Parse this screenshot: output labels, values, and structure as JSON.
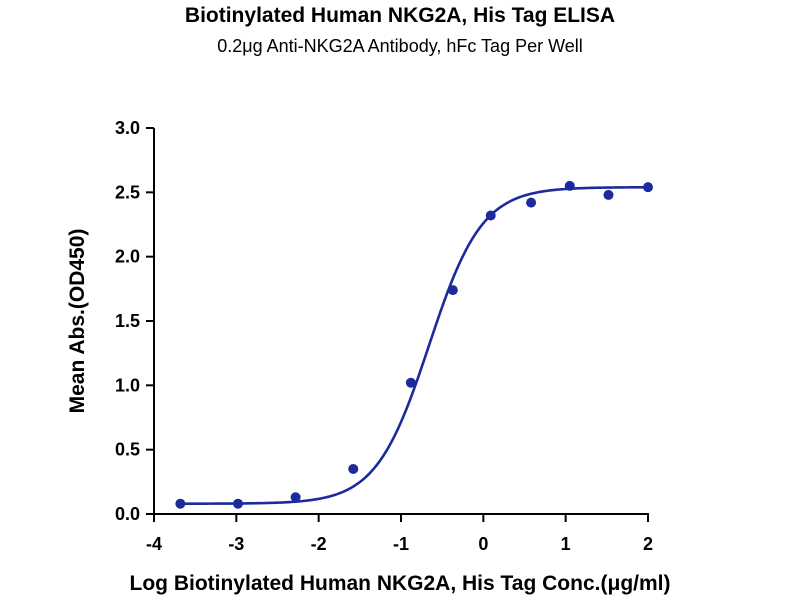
{
  "chart_data": {
    "type": "scatter",
    "title": "Biotinylated Human NKG2A, His Tag ELISA",
    "subtitle": "0.2μg Anti-NKG2A Antibody, hFc Tag Per Well",
    "xlabel": "Log Biotinylated Human NKG2A, His Tag Conc.(μg/ml)",
    "ylabel": "Mean Abs.(OD450)",
    "xlim": [
      -4,
      2
    ],
    "ylim": [
      0,
      3.0
    ],
    "xticks": [
      "-4",
      "-3",
      "-2",
      "-1",
      "0",
      "1",
      "2"
    ],
    "yticks": [
      "0.0",
      "0.5",
      "1.0",
      "1.5",
      "2.0",
      "2.5",
      "3.0"
    ],
    "grid": false,
    "colors": {
      "series": "#1c2a9c"
    },
    "series": [
      {
        "points": [
          {
            "x": -3.68,
            "y": 0.08
          },
          {
            "x": -2.98,
            "y": 0.08
          },
          {
            "x": -2.28,
            "y": 0.13
          },
          {
            "x": -1.58,
            "y": 0.35
          },
          {
            "x": -0.88,
            "y": 1.02
          },
          {
            "x": -0.37,
            "y": 1.74
          },
          {
            "x": 0.09,
            "y": 2.32
          },
          {
            "x": 0.58,
            "y": 2.42
          },
          {
            "x": 1.05,
            "y": 2.55
          },
          {
            "x": 1.52,
            "y": 2.48
          },
          {
            "x": 2.0,
            "y": 2.54
          }
        ],
        "fit": {
          "model": "4PL",
          "bottom": 0.08,
          "top": 2.54,
          "log_ec50": -0.66,
          "hill_slope": 1.35
        }
      }
    ]
  }
}
